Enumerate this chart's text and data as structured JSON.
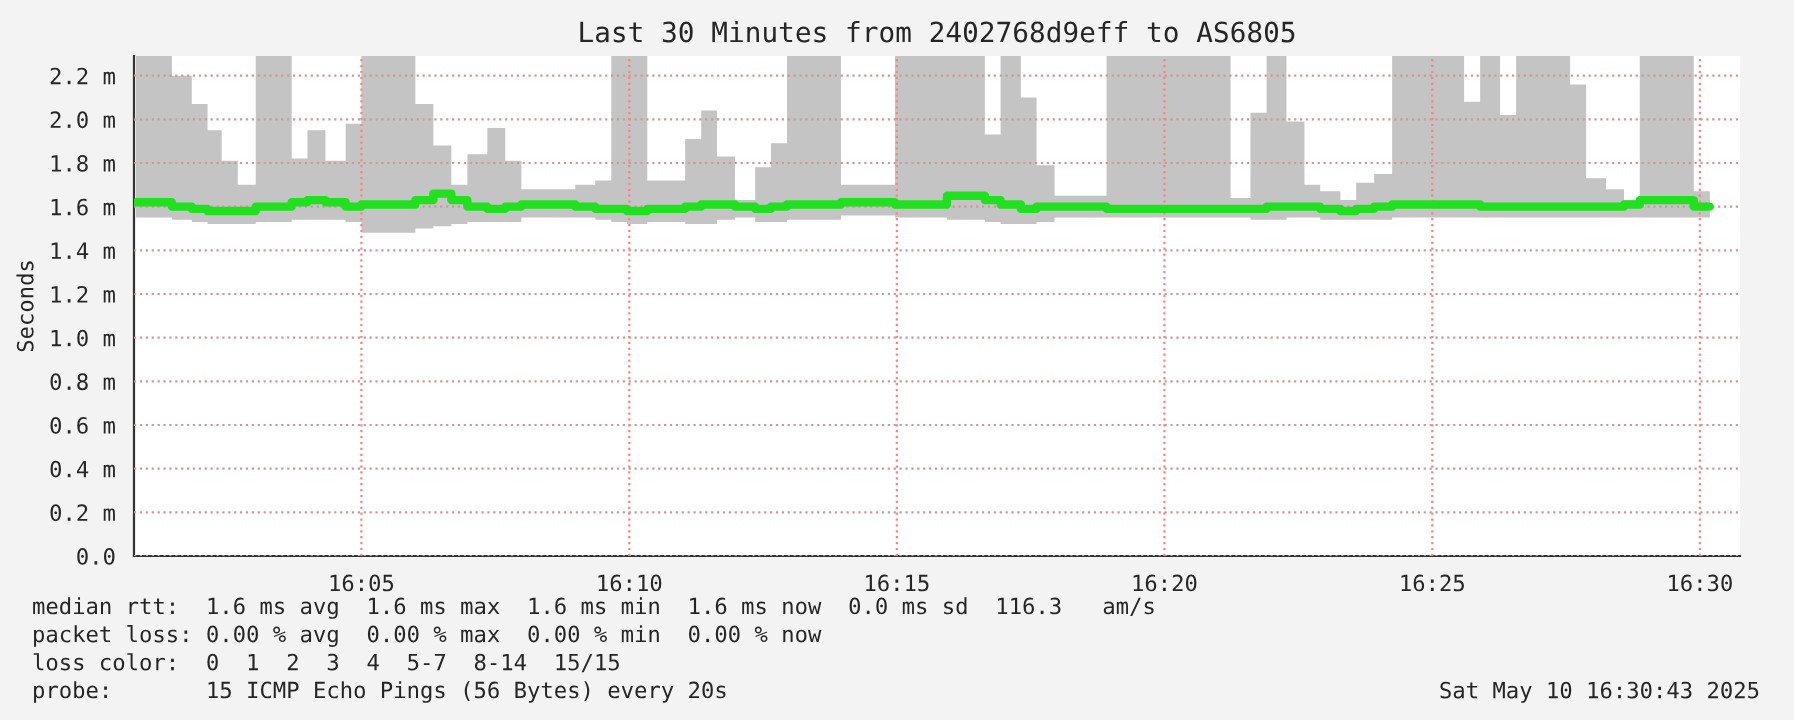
{
  "chart_data": {
    "type": "step",
    "title": "Last 30 Minutes from 2402768d9eff to AS6805",
    "ylabel": "Seconds",
    "x": [
      16.0131,
      16.0243,
      16.0305,
      16.0354,
      16.0398,
      16.0448,
      16.0504,
      16.0616,
      16.0665,
      16.0721,
      16.0784,
      16.0833,
      16.1001,
      16.1057,
      16.1113,
      16.1163,
      16.1225,
      16.1281,
      16.1331,
      16.1499,
      16.1561,
      16.1611,
      16.166,
      16.1723,
      16.1841,
      16.1891,
      16.194,
      16.1996,
      16.2059,
      16.2108,
      16.2158,
      16.2326,
      16.2494,
      16.2656,
      16.2774,
      16.2823,
      16.2886,
      16.2935,
      16.2991,
      16.3153,
      16.3539,
      16.3601,
      16.3651,
      16.3713,
      16.3769,
      16.3818,
      16.3881,
      16.393,
      16.3986,
      16.4042,
      16.4266,
      16.4316,
      16.4378,
      16.4428,
      16.4596,
      16.4646,
      16.4708,
      16.4764,
      16.4813,
      16.4981,
      16.5031
    ],
    "series": [
      {
        "color": "#20e020",
        "values": [
          1.62,
          1.6,
          1.59,
          1.58,
          1.58,
          1.58,
          1.6,
          1.62,
          1.63,
          1.62,
          1.6,
          1.61,
          1.63,
          1.66,
          1.63,
          1.6,
          1.59,
          1.6,
          1.61,
          1.6,
          1.59,
          1.59,
          1.58,
          1.59,
          1.6,
          1.61,
          1.61,
          1.6,
          1.59,
          1.6,
          1.61,
          1.62,
          1.61,
          1.65,
          1.63,
          1.61,
          1.59,
          1.6,
          1.6,
          1.59,
          1.59,
          1.59,
          1.6,
          1.6,
          1.6,
          1.59,
          1.58,
          1.59,
          1.6,
          1.61,
          1.61,
          1.6,
          1.6,
          1.6,
          1.6,
          1.6,
          1.6,
          1.61,
          1.63,
          1.6,
          1.6
        ],
        "lower": [
          1.55,
          1.54,
          1.53,
          1.52,
          1.52,
          1.52,
          1.53,
          1.54,
          1.54,
          1.54,
          1.53,
          1.48,
          1.5,
          1.51,
          1.52,
          1.53,
          1.53,
          1.53,
          1.55,
          1.55,
          1.54,
          1.53,
          1.52,
          1.53,
          1.52,
          1.52,
          1.54,
          1.55,
          1.53,
          1.53,
          1.54,
          1.56,
          1.55,
          1.54,
          1.53,
          1.52,
          1.52,
          1.53,
          1.55,
          1.55,
          1.55,
          1.54,
          1.54,
          1.55,
          1.55,
          1.54,
          1.54,
          1.54,
          1.54,
          1.55,
          1.55,
          1.55,
          1.55,
          1.55,
          1.55,
          1.55,
          1.55,
          1.55,
          1.55,
          1.55,
          1.55
        ],
        "upper": [
          2.29,
          2.2,
          2.07,
          1.95,
          1.81,
          1.7,
          2.29,
          1.82,
          1.95,
          1.81,
          1.98,
          2.29,
          2.07,
          1.88,
          1.7,
          1.84,
          1.96,
          1.81,
          1.68,
          1.7,
          1.72,
          2.29,
          2.29,
          1.72,
          1.91,
          2.04,
          1.83,
          1.63,
          1.78,
          1.89,
          2.29,
          1.7,
          2.29,
          2.29,
          1.93,
          2.29,
          2.1,
          1.79,
          1.65,
          2.29,
          1.64,
          2.03,
          2.29,
          1.99,
          1.7,
          1.67,
          1.63,
          1.71,
          1.75,
          2.29,
          2.08,
          2.29,
          2.02,
          2.29,
          2.16,
          1.73,
          1.68,
          1.63,
          2.29,
          1.67,
          1.67
        ]
      }
    ],
    "xlim": [
      16.0125,
      16.5125
    ],
    "xticks": [
      {
        "value": 16.0833,
        "label": "16:05"
      },
      {
        "value": 16.1667,
        "label": "16:10"
      },
      {
        "value": 16.25,
        "label": "16:15"
      },
      {
        "value": 16.3333,
        "label": "16:20"
      },
      {
        "value": 16.4167,
        "label": "16:25"
      },
      {
        "value": 16.5,
        "label": "16:30"
      }
    ],
    "ylim": [
      0,
      2.29
    ],
    "yticks": [
      {
        "value": 0,
        "label": "0.0"
      },
      {
        "value": 0.2,
        "label": "0.2 m"
      },
      {
        "value": 0.4,
        "label": "0.4 m"
      },
      {
        "value": 0.6,
        "label": "0.6 m"
      },
      {
        "value": 0.8,
        "label": "0.8 m"
      },
      {
        "value": 1.0,
        "label": "1.0 m"
      },
      {
        "value": 1.2,
        "label": "1.2 m"
      },
      {
        "value": 1.4,
        "label": "1.4 m"
      },
      {
        "value": 1.6,
        "label": "1.6 m"
      },
      {
        "value": 1.8,
        "label": "1.8 m"
      },
      {
        "value": 2.0,
        "label": "2.0 m"
      },
      {
        "value": 2.2,
        "label": "2.2 m"
      }
    ],
    "grid": true,
    "annotations": [
      "median rtt:  1.6 ms avg  1.6 ms max  1.6 ms min  1.6 ms now  0.0 ms sd  116.3   am/s",
      "packet loss: 0.00 % avg  0.00 % max  0.00 % min  0.00 % now",
      "loss color:  0  1  2  3  4  5-7  8-14  15/15",
      "probe:       15 ICMP Echo Pings (56 Bytes) every 20s",
      "Sat May 10 16:30:43 2025"
    ]
  }
}
